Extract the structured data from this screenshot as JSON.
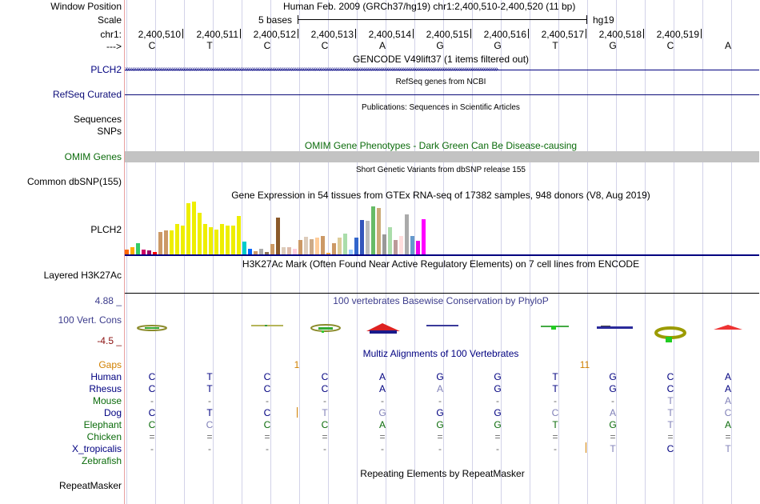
{
  "header": {
    "window_position_label": "Window Position",
    "window_position_value": "Human Feb. 2009 (GRCh37/hg19)   chr1:2,400,510-2,400,520 (11 bp)",
    "scale_label": "Scale",
    "scale_text": "5 bases",
    "scale_assembly": "hg19",
    "chrom_label": "chr1:",
    "strand_label": "--->",
    "positions": [
      "2,400,510",
      "2,400,511",
      "2,400,512",
      "2,400,513",
      "2,400,514",
      "2,400,515",
      "2,400,516",
      "2,400,517",
      "2,400,518",
      "2,400,519"
    ],
    "bases": [
      "C",
      "T",
      "C",
      "C",
      "A",
      "G",
      "G",
      "T",
      "G",
      "C",
      "A"
    ]
  },
  "tracks": {
    "gencode": {
      "title": "GENCODE V49lift37 (1 items filtered out)",
      "label": "PLCH2",
      "color": "#000080"
    },
    "refseq": {
      "title": "RefSeq genes from NCBI",
      "label": "RefSeq Curated",
      "color": "#0c0c78"
    },
    "publications": {
      "title": "Publications: Sequences in Scientific Articles",
      "label1": "Sequences",
      "label2": "SNPs"
    },
    "omim": {
      "title": "OMIM Gene Phenotypes - Dark Green Can Be Disease-causing",
      "label": "OMIM Genes",
      "color": "#0b6b0b"
    },
    "dbsnp": {
      "title": "Short Genetic Variants from dbSNP release 155",
      "label": "Common dbSNP(155)"
    },
    "gtex": {
      "title": "Gene Expression in 54 tissues from GTEx RNA-seq of 17382 samples, 948 donors (V8, Aug 2019)",
      "label": "PLCH2",
      "values": [
        6,
        9,
        14,
        6,
        5,
        3,
        28,
        30,
        30,
        38,
        36,
        64,
        66,
        52,
        38,
        34,
        31,
        38,
        36,
        36,
        48,
        16,
        7,
        4,
        7,
        3,
        13,
        46,
        9,
        9,
        7,
        18,
        22,
        19,
        21,
        23,
        2,
        14,
        21,
        26,
        6,
        21,
        43,
        42,
        60,
        58,
        25,
        34,
        18,
        23,
        50,
        23,
        17,
        44
      ],
      "colors": [
        "#ff6600",
        "#ffaa00",
        "#33cc66",
        "#cc0066",
        "#990066",
        "#ff0000",
        "#cc9966",
        "#cc9966",
        "#eeee00",
        "#eeee00",
        "#eeee00",
        "#eeee00",
        "#eeee00",
        "#eeee00",
        "#eeee00",
        "#eeee00",
        "#eeee00",
        "#eeee00",
        "#eeee00",
        "#eeee00",
        "#eeee00",
        "#00cccc",
        "#0066ff",
        "#cc9966",
        "#aaaaaa",
        "#8b7355",
        "#cc9966",
        "#8b5a2b",
        "#ddccbb",
        "#ddbbaa",
        "#ffccdd",
        "#cc9966",
        "#ddccbb",
        "#ccaa88",
        "#ffcc99",
        "#cc9966",
        "#ffaa44",
        "#cc9966",
        "#ddcc99",
        "#aaddaa",
        "#99ccff",
        "#3366cc",
        "#3355bb",
        "#bbbbbb",
        "#66bb66",
        "#ccaa77",
        "#999999",
        "#aaddaa",
        "#bb9999",
        "#ffdddd",
        "#aaaaaa",
        "#6699cc",
        "#ee00ee",
        "#ff00ff"
      ]
    },
    "h3k27ac": {
      "title": "H3K27Ac Mark (Often Found Near Active Regulatory Elements) on 7 cell lines from ENCODE",
      "label": "Layered H3K27Ac"
    },
    "conservation": {
      "title": "100 vertebrates Basewise Conservation by PhyloP",
      "label": "100 Vert. Cons",
      "ymax": "4.88 _",
      "ymin": "-4.5 _",
      "color": "#3c3c8c"
    },
    "multiz": {
      "title": "Multiz Alignments of 100 Vertebrates",
      "gaps_label": "Gaps",
      "gap_marks": [
        "1",
        "11"
      ],
      "species": [
        {
          "name": "Human",
          "color": "#000080",
          "bases": [
            "C",
            "T",
            "C",
            "C",
            "A",
            "G",
            "G",
            "T",
            "G",
            "C",
            "A"
          ]
        },
        {
          "name": "Rhesus",
          "color": "#000080",
          "bases": [
            "C",
            "T",
            "C",
            "C",
            "A",
            "A",
            "G",
            "T",
            "G",
            "C",
            "A"
          ]
        },
        {
          "name": "Mouse",
          "color": "#0b6b0b",
          "bases": [
            "-",
            "-",
            "-",
            "-",
            "-",
            "-",
            "-",
            "-",
            "-",
            "T",
            "A"
          ]
        },
        {
          "name": "Dog",
          "color": "#000080",
          "bases": [
            "C",
            "T",
            "C",
            "T",
            "G",
            "G",
            "G",
            "C",
            "A",
            "T",
            "C"
          ]
        },
        {
          "name": "Elephant",
          "color": "#0b6b0b",
          "bases": [
            "C",
            "C",
            "C",
            "C",
            "A",
            "G",
            "G",
            "T",
            "G",
            "T",
            "A"
          ]
        },
        {
          "name": "Chicken",
          "color": "#0b6b0b",
          "bases": [
            "=",
            "=",
            "=",
            "=",
            "=",
            "=",
            "=",
            "=",
            "=",
            "=",
            "="
          ]
        },
        {
          "name": "X_tropicalis",
          "color": "#000080",
          "bases": [
            "-",
            "-",
            "-",
            "-",
            "-",
            "-",
            "-",
            "-",
            "T",
            "C",
            "T"
          ]
        },
        {
          "name": "Zebrafish",
          "color": "#0b6b0b",
          "bases": []
        }
      ]
    },
    "repeatmasker": {
      "title": "Repeating Elements by RepeatMasker",
      "label": "RepeatMasker"
    }
  }
}
